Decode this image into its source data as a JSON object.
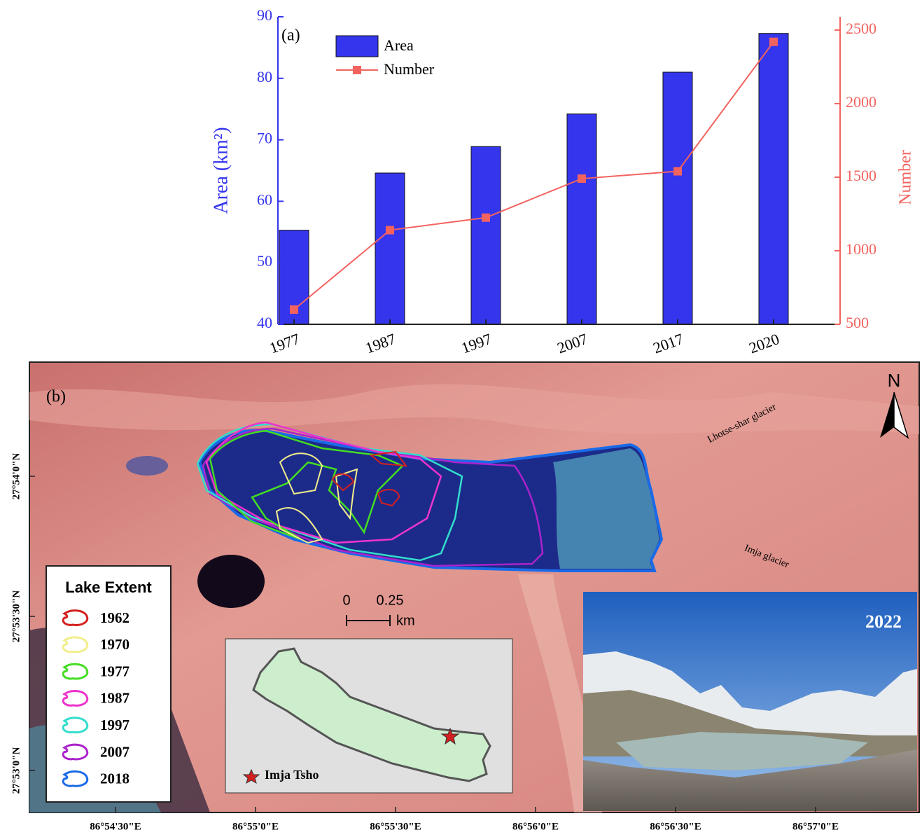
{
  "chart_data": {
    "type": "bar-line",
    "annotation": "(a)",
    "categories": [
      "1977",
      "1987",
      "1997",
      "2007",
      "2017",
      "2020"
    ],
    "series": [
      {
        "name": "Area",
        "type": "bar",
        "color": "#3535ee",
        "values": [
          55.3,
          64.6,
          68.9,
          74.2,
          81.0,
          87.3
        ]
      },
      {
        "name": "Number",
        "type": "line",
        "axis": "y2",
        "color": "#f2635f",
        "values": [
          600,
          1140,
          1225,
          1490,
          1540,
          2420
        ]
      }
    ],
    "ylabel": "Area (km²)",
    "y2label": "Number",
    "ylim": [
      40,
      90
    ],
    "yticks": [
      40,
      50,
      60,
      70,
      80,
      90
    ],
    "y2lim": [
      500,
      2590
    ],
    "y2ticks": [
      500,
      1000,
      1500,
      2000,
      2500
    ],
    "legend": "top-left"
  },
  "map": {
    "label": "(b)",
    "north": "N",
    "glaciers": [
      "Lhotse-shar glacier",
      "Imja glacier"
    ],
    "legend_title": "Lake Extent",
    "legend": [
      {
        "label": "1962",
        "color": "#d42020"
      },
      {
        "label": "1970",
        "color": "#f2ee8a"
      },
      {
        "label": "1977",
        "color": "#44dd22"
      },
      {
        "label": "1987",
        "color": "#ee33cc"
      },
      {
        "label": "1997",
        "color": "#33ddcc"
      },
      {
        "label": "2007",
        "color": "#aa22cc"
      },
      {
        "label": "2018",
        "color": "#1a6ae8"
      }
    ],
    "scale": [
      "0",
      "0.25",
      "km"
    ],
    "inset_label": "Imja Tsho",
    "photo_label": "2022",
    "lat_labels": [
      "27°54'0\"N",
      "27°53'30\"N",
      "27°53'0\"N"
    ],
    "lon_labels": [
      "86°54'30\"E",
      "86°55'0\"E",
      "86°55'30\"E",
      "86°56'0\"E",
      "86°56'30\"E",
      "86°57'0\"E"
    ]
  }
}
